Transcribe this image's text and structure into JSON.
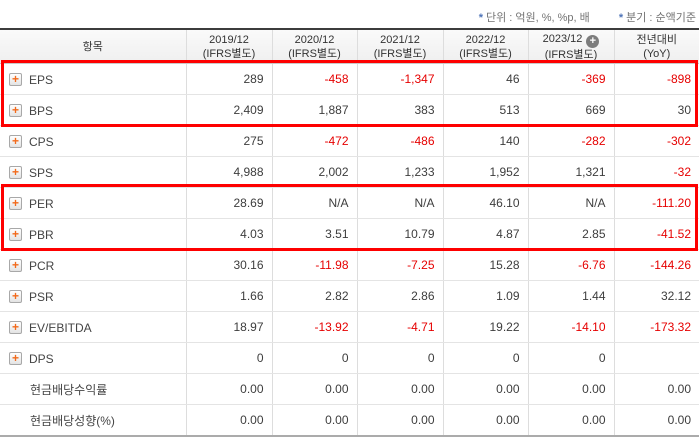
{
  "notes": {
    "unit": {
      "star": "*",
      "text": "단위 : 억원, %, %p, 배"
    },
    "basis": {
      "star": "*",
      "text": "분기 : 순액기준"
    }
  },
  "table": {
    "item_header": "항목",
    "columns": [
      {
        "line1": "2019/12",
        "line2": "(IFRS별도)",
        "plus_icon": false
      },
      {
        "line1": "2020/12",
        "line2": "(IFRS별도)",
        "plus_icon": false
      },
      {
        "line1": "2021/12",
        "line2": "(IFRS별도)",
        "plus_icon": false
      },
      {
        "line1": "2022/12",
        "line2": "(IFRS별도)",
        "plus_icon": false
      },
      {
        "line1": "2023/12",
        "line2": "(IFRS별도)",
        "plus_icon": true
      },
      {
        "line1": "전년대비",
        "line2": "(YoY)",
        "plus_icon": false
      }
    ],
    "expand_icon_glyph": "+",
    "rows": [
      {
        "label": "EPS",
        "icon": true,
        "values": [
          {
            "text": "289",
            "neg": false
          },
          {
            "text": "-458",
            "neg": true
          },
          {
            "text": "-1,347",
            "neg": true
          },
          {
            "text": "46",
            "neg": false
          },
          {
            "text": "-369",
            "neg": true
          },
          {
            "text": "-898",
            "neg": true
          }
        ]
      },
      {
        "label": "BPS",
        "icon": true,
        "values": [
          {
            "text": "2,409",
            "neg": false
          },
          {
            "text": "1,887",
            "neg": false
          },
          {
            "text": "383",
            "neg": false
          },
          {
            "text": "513",
            "neg": false
          },
          {
            "text": "669",
            "neg": false
          },
          {
            "text": "30",
            "neg": false
          }
        ]
      },
      {
        "label": "CPS",
        "icon": true,
        "values": [
          {
            "text": "275",
            "neg": false
          },
          {
            "text": "-472",
            "neg": true
          },
          {
            "text": "-486",
            "neg": true
          },
          {
            "text": "140",
            "neg": false
          },
          {
            "text": "-282",
            "neg": true
          },
          {
            "text": "-302",
            "neg": true
          }
        ]
      },
      {
        "label": "SPS",
        "icon": true,
        "values": [
          {
            "text": "4,988",
            "neg": false
          },
          {
            "text": "2,002",
            "neg": false
          },
          {
            "text": "1,233",
            "neg": false
          },
          {
            "text": "1,952",
            "neg": false
          },
          {
            "text": "1,321",
            "neg": false
          },
          {
            "text": "-32",
            "neg": true
          }
        ]
      },
      {
        "label": "PER",
        "icon": true,
        "values": [
          {
            "text": "28.69",
            "neg": false
          },
          {
            "text": "N/A",
            "neg": false
          },
          {
            "text": "N/A",
            "neg": false
          },
          {
            "text": "46.10",
            "neg": false
          },
          {
            "text": "N/A",
            "neg": false
          },
          {
            "text": "-111.20",
            "neg": true
          }
        ]
      },
      {
        "label": "PBR",
        "icon": true,
        "values": [
          {
            "text": "4.03",
            "neg": false
          },
          {
            "text": "3.51",
            "neg": false
          },
          {
            "text": "10.79",
            "neg": false
          },
          {
            "text": "4.87",
            "neg": false
          },
          {
            "text": "2.85",
            "neg": false
          },
          {
            "text": "-41.52",
            "neg": true
          }
        ]
      },
      {
        "label": "PCR",
        "icon": true,
        "values": [
          {
            "text": "30.16",
            "neg": false
          },
          {
            "text": "-11.98",
            "neg": true
          },
          {
            "text": "-7.25",
            "neg": true
          },
          {
            "text": "15.28",
            "neg": false
          },
          {
            "text": "-6.76",
            "neg": true
          },
          {
            "text": "-144.26",
            "neg": true
          }
        ]
      },
      {
        "label": "PSR",
        "icon": true,
        "values": [
          {
            "text": "1.66",
            "neg": false
          },
          {
            "text": "2.82",
            "neg": false
          },
          {
            "text": "2.86",
            "neg": false
          },
          {
            "text": "1.09",
            "neg": false
          },
          {
            "text": "1.44",
            "neg": false
          },
          {
            "text": "32.12",
            "neg": false
          }
        ]
      },
      {
        "label": "EV/EBITDA",
        "icon": true,
        "values": [
          {
            "text": "18.97",
            "neg": false
          },
          {
            "text": "-13.92",
            "neg": true
          },
          {
            "text": "-4.71",
            "neg": true
          },
          {
            "text": "19.22",
            "neg": false
          },
          {
            "text": "-14.10",
            "neg": true
          },
          {
            "text": "-173.32",
            "neg": true
          }
        ]
      },
      {
        "label": "DPS",
        "icon": true,
        "values": [
          {
            "text": "0",
            "neg": false
          },
          {
            "text": "0",
            "neg": false
          },
          {
            "text": "0",
            "neg": false
          },
          {
            "text": "0",
            "neg": false
          },
          {
            "text": "0",
            "neg": false
          },
          {
            "text": "",
            "neg": false
          }
        ]
      },
      {
        "label": "현금배당수익률",
        "icon": false,
        "values": [
          {
            "text": "0.00",
            "neg": false
          },
          {
            "text": "0.00",
            "neg": false
          },
          {
            "text": "0.00",
            "neg": false
          },
          {
            "text": "0.00",
            "neg": false
          },
          {
            "text": "0.00",
            "neg": false
          },
          {
            "text": "0.00",
            "neg": false
          }
        ]
      },
      {
        "label": "현금배당성향(%)",
        "icon": false,
        "values": [
          {
            "text": "0.00",
            "neg": false
          },
          {
            "text": "0.00",
            "neg": false
          },
          {
            "text": "0.00",
            "neg": false
          },
          {
            "text": "0.00",
            "neg": false
          },
          {
            "text": "0.00",
            "neg": false
          },
          {
            "text": "0.00",
            "neg": false
          }
        ]
      }
    ]
  },
  "highlights": [
    {
      "rows": [
        "EPS",
        "BPS"
      ]
    },
    {
      "rows": [
        "PER",
        "PBR"
      ]
    }
  ],
  "colors": {
    "negative_value": "#e60000",
    "highlight_border": "#fe0000",
    "expand_plus": "#f26a1b",
    "note_star": "#4f74b8",
    "header_top_border": "#3c3c3c"
  }
}
